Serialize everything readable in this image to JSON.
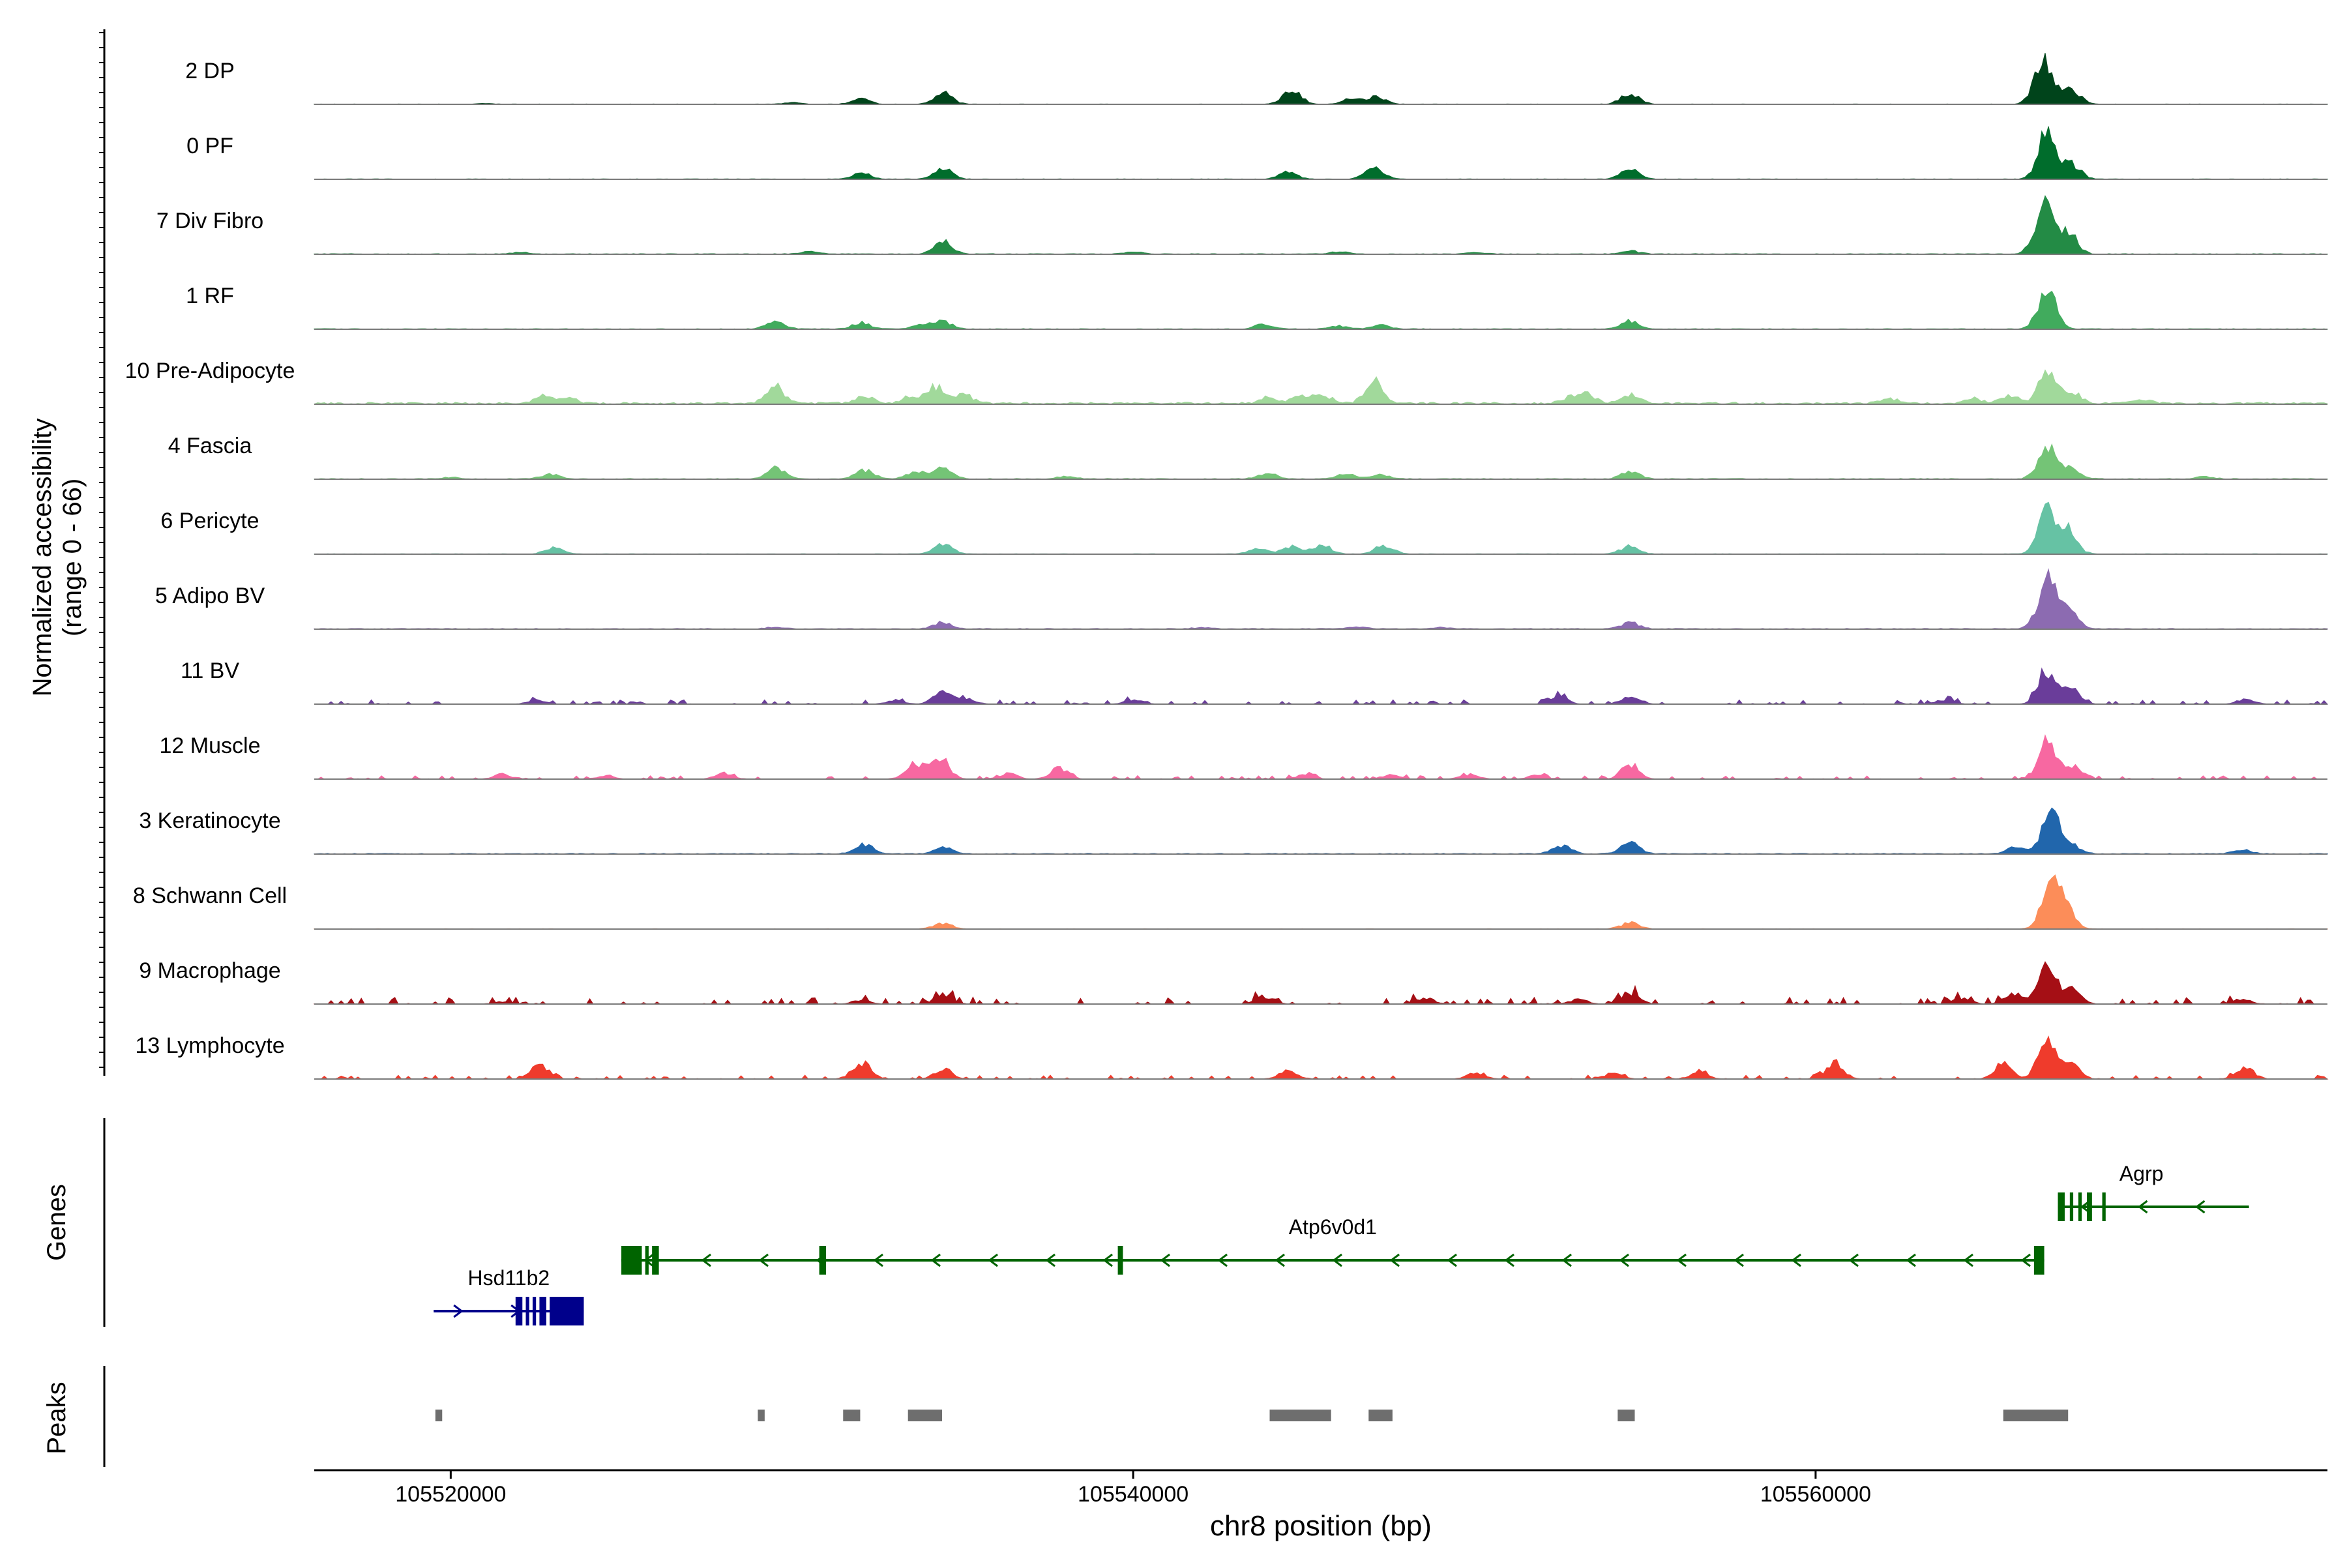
{
  "chart_data": {
    "type": "area",
    "chromosome": "chr8",
    "xlim": [
      105516000,
      105575000
    ],
    "y_axis_title": "Normalized accessibility",
    "y_axis_range_note": "(range 0 - 66)",
    "ylim": [
      0,
      66
    ],
    "x_axis_title": "chr8 position (bp)",
    "x_ticks": [
      105520000,
      105540000,
      105560000
    ],
    "x_tick_labels": [
      "105520000",
      "105540000",
      "105560000"
    ],
    "panel_labels": {
      "genes": "Genes",
      "peaks": "Peaks"
    },
    "tracks": [
      {
        "name": "2 DP",
        "color": "#00441b",
        "noise": 0.4,
        "peaks": [
          [
            105521000,
            1
          ],
          [
            105530000,
            2
          ],
          [
            105532000,
            7
          ],
          [
            105534400,
            14
          ],
          [
            105544600,
            19
          ],
          [
            105546400,
            8
          ],
          [
            105547100,
            9
          ],
          [
            105554500,
            14
          ],
          [
            105566600,
            58
          ],
          [
            105567400,
            18
          ]
        ]
      },
      {
        "name": "0 PF",
        "color": "#006d2c",
        "noise": 0.5,
        "peaks": [
          [
            105532000,
            8
          ],
          [
            105534400,
            15
          ],
          [
            105544500,
            10
          ],
          [
            105547000,
            16
          ],
          [
            105554500,
            14
          ],
          [
            105566700,
            58
          ],
          [
            105567400,
            20
          ]
        ]
      },
      {
        "name": "7 Div Fibro",
        "color": "#238b45",
        "noise": 0.7,
        "peaks": [
          [
            105522000,
            2
          ],
          [
            105530500,
            3
          ],
          [
            105534400,
            16
          ],
          [
            105540000,
            3
          ],
          [
            105546000,
            3
          ],
          [
            105550000,
            2
          ],
          [
            105554500,
            4
          ],
          [
            105566600,
            62
          ],
          [
            105567300,
            28
          ]
        ]
      },
      {
        "name": "1 RF",
        "color": "#41ab5d",
        "noise": 0.7,
        "peaks": [
          [
            105529500,
            10
          ],
          [
            105532000,
            8
          ],
          [
            105533800,
            6
          ],
          [
            105534400,
            10
          ],
          [
            105543800,
            6
          ],
          [
            105546000,
            4
          ],
          [
            105547200,
            5
          ],
          [
            105554500,
            10
          ],
          [
            105566700,
            50
          ]
        ]
      },
      {
        "name": "10 Pre-Adipocyte",
        "color": "#a1d99b",
        "noise": 2,
        "peaks": [
          [
            105522700,
            10
          ],
          [
            105523400,
            7
          ],
          [
            105529500,
            22
          ],
          [
            105532100,
            8
          ],
          [
            105533500,
            9
          ],
          [
            105534200,
            22
          ],
          [
            105535000,
            12
          ],
          [
            105543900,
            7
          ],
          [
            105544800,
            9
          ],
          [
            105545500,
            11
          ],
          [
            105547000,
            30
          ],
          [
            105552800,
            8
          ],
          [
            105553300,
            10
          ],
          [
            105554500,
            11
          ],
          [
            105562100,
            6
          ],
          [
            105564500,
            6
          ],
          [
            105565600,
            10
          ],
          [
            105566700,
            40
          ],
          [
            105567400,
            14
          ],
          [
            105569500,
            5
          ]
        ]
      },
      {
        "name": "4 Fascia",
        "color": "#74c476",
        "noise": 0.8,
        "peaks": [
          [
            105520000,
            2
          ],
          [
            105522900,
            6
          ],
          [
            105529500,
            14
          ],
          [
            105532100,
            11
          ],
          [
            105533600,
            10
          ],
          [
            105534400,
            16
          ],
          [
            105538000,
            3
          ],
          [
            105543900,
            8
          ],
          [
            105546200,
            6
          ],
          [
            105547200,
            5
          ],
          [
            105554500,
            11
          ],
          [
            105566700,
            42
          ],
          [
            105567400,
            14
          ],
          [
            105571300,
            3
          ]
        ]
      },
      {
        "name": "6 Pericyte",
        "color": "#66c2a4",
        "noise": 0.5,
        "peaks": [
          [
            105523000,
            8
          ],
          [
            105534400,
            13
          ],
          [
            105543600,
            7
          ],
          [
            105544600,
            10
          ],
          [
            105545500,
            12
          ],
          [
            105547300,
            12
          ],
          [
            105554500,
            10
          ],
          [
            105566700,
            54
          ],
          [
            105567300,
            30
          ]
        ]
      },
      {
        "name": "5 Adipo BV",
        "color": "#8c6bb1",
        "noise": 0.8,
        "peaks": [
          [
            105529500,
            2
          ],
          [
            105534400,
            8
          ],
          [
            105542000,
            2
          ],
          [
            105546500,
            3
          ],
          [
            105549000,
            2
          ],
          [
            105554500,
            8
          ],
          [
            105566700,
            62
          ],
          [
            105567300,
            26
          ]
        ]
      },
      {
        "name": "11 BV",
        "color": "#6a3d9a",
        "sparse": 1.5,
        "peaks": [
          [
            105522500,
            5
          ],
          [
            105533000,
            5
          ],
          [
            105534400,
            18
          ],
          [
            105535100,
            7
          ],
          [
            105540000,
            6
          ],
          [
            105552400,
            9
          ],
          [
            105554500,
            10
          ],
          [
            105563700,
            6
          ],
          [
            105566700,
            44
          ],
          [
            105567400,
            20
          ],
          [
            105572500,
            6
          ]
        ]
      },
      {
        "name": "12 Muscle",
        "color": "#f768a1",
        "sparse": 1.2,
        "peaks": [
          [
            105521500,
            6
          ],
          [
            105524500,
            4
          ],
          [
            105528000,
            8
          ],
          [
            105533600,
            20
          ],
          [
            105534300,
            28
          ],
          [
            105536300,
            7
          ],
          [
            105537800,
            14
          ],
          [
            105545000,
            6
          ],
          [
            105547500,
            5
          ],
          [
            105549800,
            6
          ],
          [
            105551800,
            5
          ],
          [
            105554500,
            18
          ],
          [
            105566700,
            48
          ],
          [
            105567500,
            16
          ]
        ]
      },
      {
        "name": "3 Keratinocyte",
        "color": "#2166ac",
        "noise": 0.9,
        "peaks": [
          [
            105532100,
            12
          ],
          [
            105534400,
            8
          ],
          [
            105552500,
            11
          ],
          [
            105554500,
            14
          ],
          [
            105565800,
            10
          ],
          [
            105566800,
            52
          ],
          [
            105567400,
            12
          ],
          [
            105572400,
            5
          ]
        ]
      },
      {
        "name": "8 Schwann Cell",
        "color": "#fc8d59",
        "noise": 0.4,
        "peaks": [
          [
            105534400,
            7
          ],
          [
            105554500,
            8
          ],
          [
            105566800,
            58
          ],
          [
            105567200,
            28
          ]
        ]
      },
      {
        "name": "9 Macrophage",
        "color": "#a50f15",
        "sparse": 2.5,
        "peaks": [
          [
            105521500,
            3
          ],
          [
            105532000,
            5
          ],
          [
            105534400,
            12
          ],
          [
            105543800,
            10
          ],
          [
            105548500,
            8
          ],
          [
            105553000,
            6
          ],
          [
            105554500,
            15
          ],
          [
            105564200,
            8
          ],
          [
            105565700,
            14
          ],
          [
            105566700,
            48
          ],
          [
            105567400,
            20
          ],
          [
            105572400,
            6
          ]
        ]
      },
      {
        "name": "13 Lymphocyte",
        "color": "#ef3b2c",
        "sparse": 1.3,
        "peaks": [
          [
            105522600,
            18
          ],
          [
            105532000,
            22
          ],
          [
            105534400,
            12
          ],
          [
            105544500,
            10
          ],
          [
            105550000,
            8
          ],
          [
            105554000,
            8
          ],
          [
            105556500,
            8
          ],
          [
            105560500,
            20
          ],
          [
            105565400,
            18
          ],
          [
            105566700,
            50
          ],
          [
            105567400,
            18
          ],
          [
            105572500,
            14
          ]
        ]
      }
    ],
    "genes": [
      {
        "name": "Hsd11b2",
        "color": "#00008b",
        "strand": "+",
        "start": 105519500,
        "end": 105523900,
        "exons": [
          [
            105521900,
            105522100
          ],
          [
            105522200,
            105522300
          ],
          [
            105522400,
            105522500
          ],
          [
            105522600,
            105522800
          ],
          [
            105522900,
            105523900
          ]
        ]
      },
      {
        "name": "Atp6v0d1",
        "color": "#006400",
        "strand": "-",
        "start": 105525000,
        "end": 105566700,
        "exons": [
          [
            105525000,
            105525600
          ],
          [
            105525700,
            105525800
          ],
          [
            105525900,
            105526100
          ],
          [
            105530800,
            105531000
          ],
          [
            105539550,
            105539700
          ],
          [
            105566400,
            105566700
          ]
        ]
      },
      {
        "name": "Agrp",
        "color": "#006400",
        "strand": "-",
        "start": 105567100,
        "end": 105572700,
        "exons": [
          [
            105567100,
            105567300
          ],
          [
            105567450,
            105567550
          ],
          [
            105567700,
            105567800
          ],
          [
            105567950,
            105568100
          ],
          [
            105568400,
            105568500
          ]
        ]
      }
    ],
    "peaks_track": [
      [
        105519550,
        105519750
      ],
      [
        105529000,
        105529200
      ],
      [
        105531500,
        105532000
      ],
      [
        105533400,
        105534400
      ],
      [
        105544000,
        105545800
      ],
      [
        105546900,
        105547600
      ],
      [
        105554200,
        105554700
      ],
      [
        105565500,
        105567400
      ]
    ]
  }
}
